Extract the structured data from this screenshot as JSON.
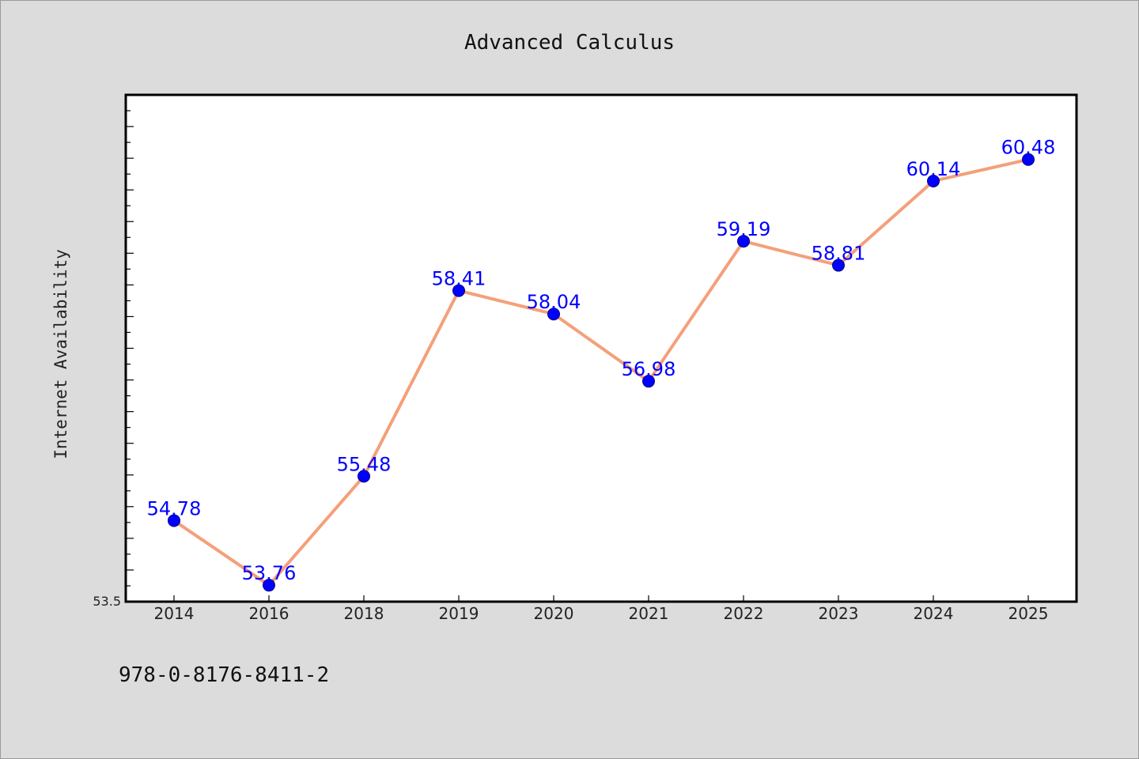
{
  "chart_data": {
    "type": "line",
    "title": "Advanced Calculus",
    "xlabel": "",
    "ylabel": "Internet Availability",
    "categories": [
      "2014",
      "2016",
      "2018",
      "2019",
      "2020",
      "2021",
      "2022",
      "2023",
      "2024",
      "2025"
    ],
    "series": [
      {
        "values": [
          54.78,
          53.76,
          55.48,
          58.41,
          58.04,
          56.98,
          59.19,
          58.81,
          60.14,
          60.48
        ],
        "data_labels": [
          "54.78",
          "53.76",
          "55.48",
          "58.41",
          "58.04",
          "56.98",
          "59.19",
          "58.81",
          "60.14",
          "60.48"
        ],
        "line_color": "#f4a07a",
        "marker_color": "#0000ff"
      }
    ],
    "ylim": [
      53.5,
      61.5
    ],
    "y_tick_labels": [
      "53.5"
    ],
    "grid": false,
    "legend": "none"
  },
  "footer": {
    "isbn": "978-0-8176-8411-2"
  },
  "colors": {
    "background": "#dcdcdc",
    "plot_background": "#ffffff",
    "line": "#f4a07a",
    "marker": "#0000ff",
    "data_label": "#0000ff"
  }
}
